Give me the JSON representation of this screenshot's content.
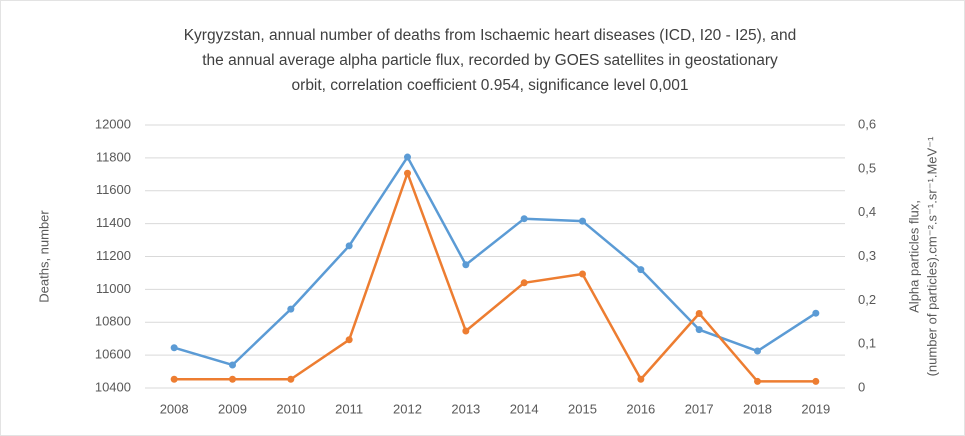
{
  "chart_data": {
    "type": "line",
    "title": [
      "Kyrgyzstan, annual number of deaths from Ischaemic heart diseases (ICD, I20 - I25), and",
      "the annual average alpha particle flux, recorded by GOES satellites in geostationary",
      "orbit, correlation coefficient 0.954, significance level 0,001"
    ],
    "y_label": "Deaths, number",
    "y2_label": [
      "Alpha particles flux,",
      "(number of particles).cm⁻².s⁻¹.sr⁻¹.MeV⁻¹"
    ],
    "categories": [
      "2008",
      "2009",
      "2010",
      "2011",
      "2012",
      "2013",
      "2014",
      "2015",
      "2016",
      "2017",
      "2018",
      "2019"
    ],
    "series": [
      {
        "color": "#5b9bd5",
        "values": [
          10645,
          10540,
          10880,
          11265,
          11805,
          11150,
          11430,
          11415,
          11120,
          10755,
          10625,
          10855
        ]
      },
      {
        "color": "#ed7d31",
        "axis": "y2",
        "values": [
          0.02,
          0.02,
          0.02,
          0.11,
          0.49,
          0.13,
          0.24,
          0.26,
          0.02,
          0.17,
          0.015,
          0.015
        ]
      }
    ],
    "ylim": [
      10400,
      12000
    ],
    "yticks": [
      10400,
      10600,
      10800,
      11000,
      11200,
      11400,
      11600,
      11800,
      12000
    ],
    "y2lim": [
      0,
      0.6
    ],
    "y2ticks": [
      0,
      {
        "value": 0.1,
        "label": "0,1"
      },
      {
        "value": 0.2,
        "label": "0,2"
      },
      {
        "value": 0.3,
        "label": "0,3"
      },
      {
        "value": 0.4,
        "label": "0,4"
      },
      {
        "value": 0.5,
        "label": "0,5"
      },
      {
        "value": 0.6,
        "label": "0,6"
      }
    ],
    "grid": true
  }
}
